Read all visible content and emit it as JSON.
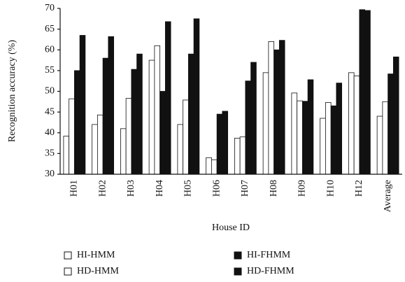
{
  "chart_data": {
    "type": "bar",
    "x_label": "House ID",
    "y_label": "Recognition accuracy (%)",
    "categories": [
      "H01",
      "H02",
      "H03",
      "H04",
      "H05",
      "H06",
      "H07",
      "H08",
      "H09",
      "H10",
      "H12",
      "Average"
    ],
    "series": [
      {
        "name": "HI-HMM",
        "color": "#ffffff",
        "values": [
          39.2,
          42,
          41,
          57.5,
          42,
          34,
          38.7,
          54.5,
          49.6,
          43.5,
          54.5,
          44
        ]
      },
      {
        "name": "HD-HMM",
        "color": "#ffffff",
        "values": [
          48.2,
          44.3,
          48.3,
          61,
          47.9,
          33.5,
          39,
          62,
          47.7,
          47.3,
          53.7,
          47.5
        ]
      },
      {
        "name": "HI-FHMM",
        "color": "#111111",
        "values": [
          55,
          58,
          55.3,
          50,
          59,
          44.5,
          52.5,
          60,
          47.6,
          46.5,
          69.7,
          54.2
        ]
      },
      {
        "name": "HD-FHMM",
        "color": "#111111",
        "values": [
          63.5,
          63.2,
          59,
          66.8,
          67.5,
          45.2,
          57,
          62.3,
          52.8,
          52,
          69.5,
          58.3
        ]
      }
    ],
    "ylim": [
      30,
      70
    ],
    "yticks": [
      30,
      35,
      40,
      45,
      50,
      55,
      60,
      65,
      70
    ]
  }
}
